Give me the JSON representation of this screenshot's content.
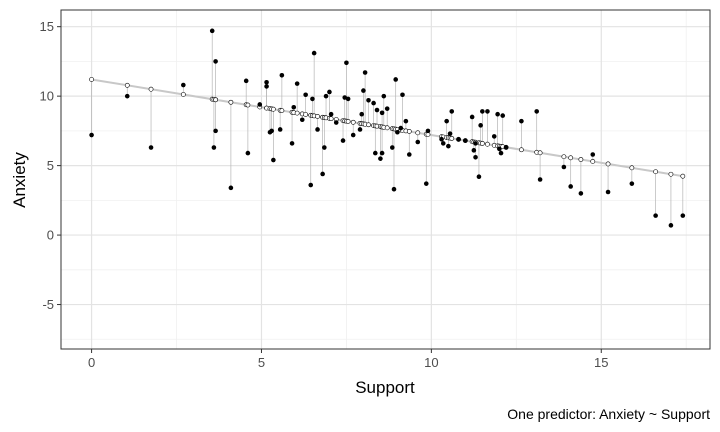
{
  "chart_data": {
    "type": "scatter",
    "xlabel": "Support",
    "ylabel": "Anxiety",
    "caption": "One predictor: Anxiety ~ Support",
    "xlim": [
      -0.9,
      18.2
    ],
    "ylim": [
      -8.2,
      16.2
    ],
    "x_ticks": [
      0,
      5,
      10,
      15
    ],
    "x_tick_labels": [
      "0",
      "5",
      "10",
      "15"
    ],
    "y_ticks": [
      -5,
      0,
      5,
      10,
      15
    ],
    "y_tick_labels": [
      "-5",
      "0",
      "5",
      "10",
      "15"
    ],
    "grid": true,
    "regression_line": {
      "intercept": 11.2,
      "slope": -0.4,
      "x_range": [
        0,
        17.4
      ]
    },
    "observed_points": [
      [
        0.0,
        7.2
      ],
      [
        1.05,
        10.0
      ],
      [
        1.75,
        6.3
      ],
      [
        2.7,
        10.8
      ],
      [
        3.55,
        14.7
      ],
      [
        3.6,
        6.3
      ],
      [
        3.65,
        12.5
      ],
      [
        3.65,
        7.5
      ],
      [
        4.1,
        3.4
      ],
      [
        4.55,
        11.1
      ],
      [
        4.6,
        5.9
      ],
      [
        4.95,
        9.4
      ],
      [
        5.15,
        10.7
      ],
      [
        5.15,
        11.0
      ],
      [
        5.25,
        7.4
      ],
      [
        5.3,
        7.5
      ],
      [
        5.35,
        5.4
      ],
      [
        5.55,
        7.6
      ],
      [
        5.6,
        11.5
      ],
      [
        5.9,
        6.6
      ],
      [
        5.95,
        9.2
      ],
      [
        6.05,
        10.9
      ],
      [
        6.2,
        8.3
      ],
      [
        6.3,
        10.1
      ],
      [
        6.45,
        3.6
      ],
      [
        6.5,
        9.8
      ],
      [
        6.55,
        13.1
      ],
      [
        6.65,
        7.6
      ],
      [
        6.8,
        4.4
      ],
      [
        6.85,
        6.3
      ],
      [
        6.9,
        10.0
      ],
      [
        7.0,
        10.3
      ],
      [
        7.05,
        8.7
      ],
      [
        7.2,
        8.1
      ],
      [
        7.4,
        6.8
      ],
      [
        7.45,
        9.9
      ],
      [
        7.5,
        12.4
      ],
      [
        7.55,
        9.8
      ],
      [
        7.7,
        7.2
      ],
      [
        7.9,
        7.6
      ],
      [
        7.95,
        8.7
      ],
      [
        8.0,
        10.4
      ],
      [
        8.05,
        11.7
      ],
      [
        8.15,
        9.7
      ],
      [
        8.3,
        9.5
      ],
      [
        8.35,
        5.9
      ],
      [
        8.4,
        9.0
      ],
      [
        8.5,
        5.5
      ],
      [
        8.55,
        8.8
      ],
      [
        8.55,
        5.9
      ],
      [
        8.6,
        10.0
      ],
      [
        8.7,
        9.1
      ],
      [
        8.85,
        6.3
      ],
      [
        8.9,
        3.3
      ],
      [
        8.95,
        11.2
      ],
      [
        9.0,
        7.4
      ],
      [
        9.1,
        7.7
      ],
      [
        9.15,
        10.1
      ],
      [
        9.25,
        8.2
      ],
      [
        9.35,
        5.8
      ],
      [
        9.6,
        6.7
      ],
      [
        9.85,
        3.7
      ],
      [
        9.9,
        7.5
      ],
      [
        10.3,
        6.9
      ],
      [
        10.35,
        6.6
      ],
      [
        10.45,
        8.2
      ],
      [
        10.5,
        6.4
      ],
      [
        10.55,
        7.3
      ],
      [
        10.6,
        8.9
      ],
      [
        10.8,
        6.9
      ],
      [
        11.0,
        6.8
      ],
      [
        11.2,
        8.5
      ],
      [
        11.25,
        6.1
      ],
      [
        11.3,
        5.6
      ],
      [
        11.3,
        6.6
      ],
      [
        11.4,
        4.2
      ],
      [
        11.45,
        7.9
      ],
      [
        11.5,
        8.9
      ],
      [
        11.65,
        8.9
      ],
      [
        11.85,
        7.1
      ],
      [
        11.95,
        8.7
      ],
      [
        12.0,
        6.2
      ],
      [
        12.05,
        5.9
      ],
      [
        12.1,
        8.6
      ],
      [
        12.2,
        6.3
      ],
      [
        12.65,
        8.2
      ],
      [
        13.1,
        8.9
      ],
      [
        13.2,
        4.0
      ],
      [
        13.9,
        4.9
      ],
      [
        14.1,
        3.5
      ],
      [
        14.4,
        3.0
      ],
      [
        14.75,
        5.8
      ],
      [
        15.2,
        3.1
      ],
      [
        15.9,
        3.7
      ],
      [
        16.6,
        1.4
      ],
      [
        17.05,
        0.7
      ],
      [
        17.4,
        1.4
      ]
    ]
  }
}
